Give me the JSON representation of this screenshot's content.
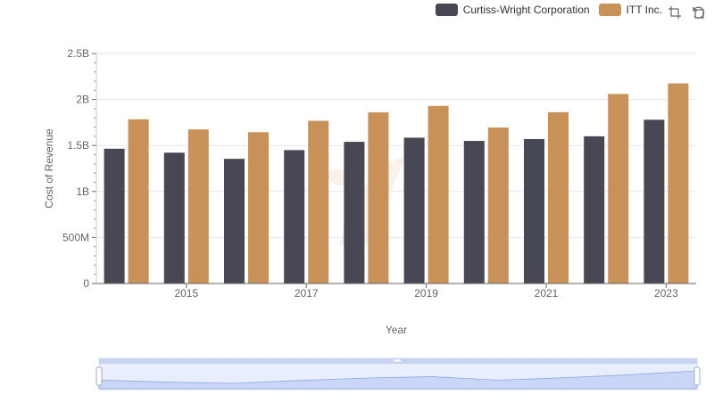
{
  "legend": {
    "items": [
      {
        "label": "Curtiss-Wright Corporation",
        "color": "#474854"
      },
      {
        "label": "ITT Inc.",
        "color": "#c8915a"
      }
    ]
  },
  "toolbox": {
    "icons": [
      "zoom-icon",
      "restore-icon"
    ]
  },
  "chart_data": {
    "type": "bar",
    "categories": [
      "2014",
      "2015",
      "2016",
      "2017",
      "2018",
      "2019",
      "2020",
      "2021",
      "2022",
      "2023"
    ],
    "x_tick_labels": [
      "2015",
      "2017",
      "2019",
      "2021",
      "2023"
    ],
    "series": [
      {
        "name": "Curtiss-Wright Corporation",
        "color": "#474854",
        "values": [
          1465000000,
          1422000000,
          1355000000,
          1450000000,
          1540000000,
          1585000000,
          1550000000,
          1570000000,
          1600000000,
          1780000000
        ]
      },
      {
        "name": "ITT Inc.",
        "color": "#c8915a",
        "values": [
          1785000000,
          1675000000,
          1645000000,
          1768000000,
          1860000000,
          1930000000,
          1695000000,
          1862000000,
          2060000000,
          2175000000
        ]
      }
    ],
    "xlabel": "Year",
    "ylabel": "Cost of Revenue",
    "ylim": [
      0,
      2500000000
    ],
    "y_ticks": [
      0,
      500000000,
      1000000000,
      1500000000,
      2000000000,
      2500000000
    ],
    "y_tick_labels": [
      "0",
      "500M",
      "1B",
      "1.5B",
      "2B",
      "2.5B"
    ],
    "grid": true,
    "legend_position": "top-right",
    "data_zoom_slider": true
  }
}
